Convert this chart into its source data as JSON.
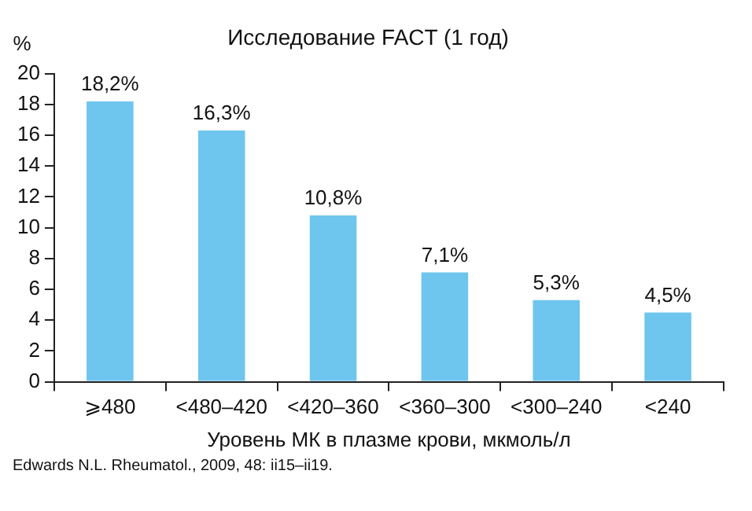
{
  "chart_data": {
    "type": "bar",
    "title": "Исследование FACT (1 год)",
    "xlabel": "Уровень МК в плазме крови, мкмоль/л",
    "ylabel": "%",
    "categories": [
      "⩾480",
      "<480–420",
      "<420–360",
      "<360–300",
      "<300–240",
      "<240"
    ],
    "values": [
      18.2,
      16.3,
      10.8,
      7.1,
      5.3,
      4.5
    ],
    "value_labels": [
      "18,2%",
      "16,3%",
      "10,8%",
      "7,1%",
      "5,3%",
      "4,5%"
    ],
    "color": "#6ec6ee",
    "ylim": [
      0,
      20
    ],
    "yticks": [
      0,
      2,
      4,
      6,
      8,
      10,
      12,
      14,
      16,
      18,
      20
    ],
    "grid": false,
    "legend": false,
    "annotations": [
      "Edwards N.L. Rheumatol., 2009, 48: ii15–ii19."
    ]
  }
}
